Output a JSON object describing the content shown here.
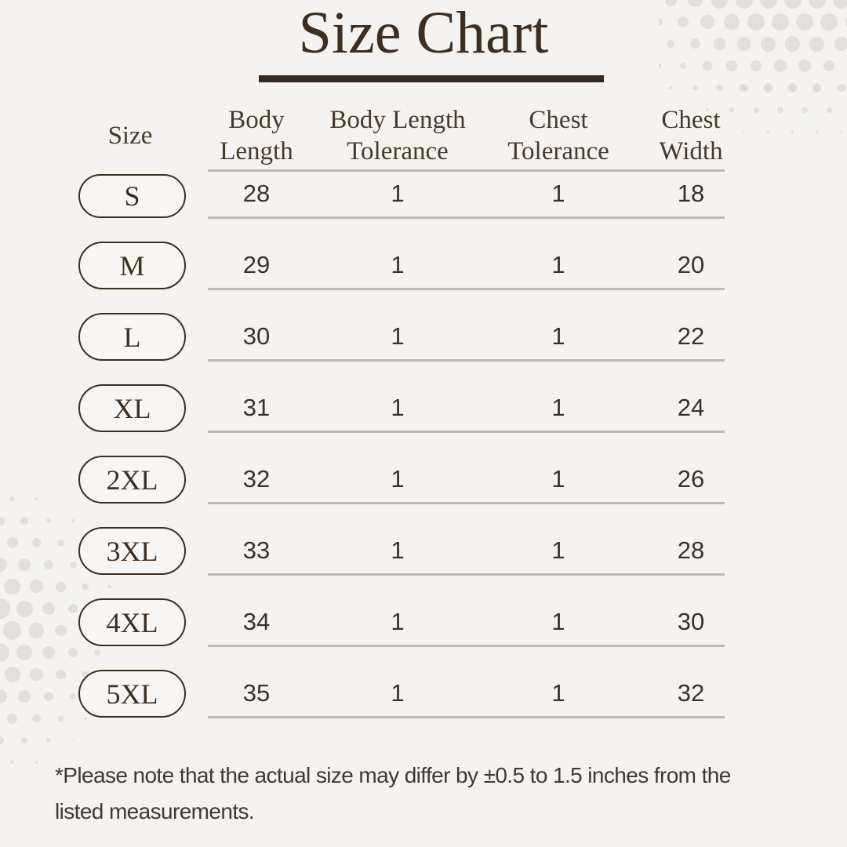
{
  "title": {
    "text": "Size Chart"
  },
  "table": {
    "columns": [
      {
        "key": "size",
        "label": "Size"
      },
      {
        "key": "body_length",
        "label": "Body Length"
      },
      {
        "key": "body_length_tolerance",
        "label": "Body Length Tolerance"
      },
      {
        "key": "chest_tolerance",
        "label": "Chest Tolerance"
      },
      {
        "key": "chest_width",
        "label": "Chest Width"
      }
    ],
    "rows": [
      {
        "size": "S",
        "values": [
          "28",
          "1",
          "1",
          "18"
        ]
      },
      {
        "size": "M",
        "values": [
          "29",
          "1",
          "1",
          "20"
        ]
      },
      {
        "size": "L",
        "values": [
          "30",
          "1",
          "1",
          "22"
        ]
      },
      {
        "size": "XL",
        "values": [
          "31",
          "1",
          "1",
          "24"
        ]
      },
      {
        "size": "2XL",
        "values": [
          "32",
          "1",
          "1",
          "26"
        ]
      },
      {
        "size": "3XL",
        "values": [
          "33",
          "1",
          "1",
          "28"
        ]
      },
      {
        "size": "4XL",
        "values": [
          "34",
          "1",
          "1",
          "30"
        ]
      },
      {
        "size": "5XL",
        "values": [
          "35",
          "1",
          "1",
          "32"
        ]
      }
    ]
  },
  "footnote": {
    "text": "*Please note that the actual size may differ by ±0.5 to 1.5 inches from the listed measurements.",
    "lines": [
      "*Please note that the actual size may differ by ±0.5 to 1.5 inches from the",
      "listed measurements."
    ]
  },
  "colors": {
    "background": "#f4f3f1",
    "accent_dark": "#3b2e23",
    "header_text": "#46392e",
    "value_text": "#38322c",
    "divider": "#bdbab6",
    "footnote_text": "#3e3933",
    "halftone_dot": "#e2e0dc",
    "pill_fill": "#f7f6f4"
  }
}
